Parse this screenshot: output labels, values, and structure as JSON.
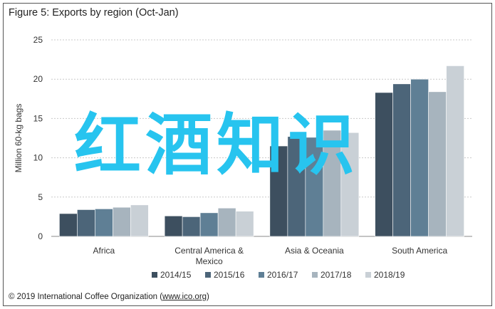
{
  "page": {
    "title": "Figure 5: Exports by region (Oct-Jan)",
    "credit_prefix": "© 2019 International Coffee Organization (",
    "credit_link": "www.ico.org",
    "credit_suffix": ")",
    "watermark": "红酒知识"
  },
  "chart_data": {
    "type": "bar",
    "title": "Figure 5: Exports by region (Oct-Jan)",
    "xlabel": "",
    "ylabel": "Million 60-kg bags",
    "ylim": [
      0,
      25
    ],
    "yticks": [
      0,
      5,
      10,
      15,
      20,
      25
    ],
    "grid": true,
    "legend_position": "bottom",
    "categories": [
      "Africa",
      "Central America &\nMexico",
      "Asia & Oceania",
      "South America"
    ],
    "series": [
      {
        "name": "2014/15",
        "color": "#3d4f5f",
        "values": [
          2.9,
          2.6,
          11.5,
          18.3
        ]
      },
      {
        "name": "2015/16",
        "color": "#4c6579",
        "values": [
          3.4,
          2.5,
          12.7,
          19.4
        ]
      },
      {
        "name": "2016/17",
        "color": "#5f7f95",
        "values": [
          3.5,
          3.0,
          12.6,
          20.0
        ]
      },
      {
        "name": "2017/18",
        "color": "#a7b4be",
        "values": [
          3.7,
          3.6,
          13.5,
          18.4
        ]
      },
      {
        "name": "2018/19",
        "color": "#c9d0d6",
        "values": [
          4.0,
          3.2,
          13.2,
          21.7
        ]
      }
    ]
  }
}
